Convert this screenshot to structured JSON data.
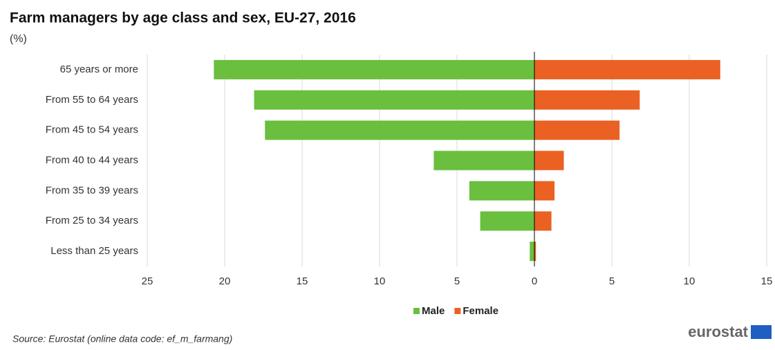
{
  "chart_data": {
    "type": "bar",
    "orientation": "horizontal",
    "title": "Farm managers by age class and sex, EU-27, 2016",
    "subtitle": "(%)",
    "categories": [
      "65 years or more",
      "From 55 to 64 years",
      "From 45 to 54 years",
      "From 40 to 44 years",
      "From 35 to 39 years",
      "From 25 to 34 years",
      "Less than 25 years"
    ],
    "series": [
      {
        "name": "Male",
        "color": "#6abf3e",
        "values": [
          -20.7,
          -18.1,
          -17.4,
          -6.5,
          -4.2,
          -3.5,
          -0.3
        ]
      },
      {
        "name": "Female",
        "color": "#eb6123",
        "values": [
          12.0,
          6.8,
          5.5,
          1.9,
          1.3,
          1.1,
          0.1
        ]
      }
    ],
    "xlim": [
      -25,
      15
    ],
    "xticks": [
      {
        "value": -25,
        "label": "25"
      },
      {
        "value": -20,
        "label": "20"
      },
      {
        "value": -15,
        "label": "15"
      },
      {
        "value": -10,
        "label": "10"
      },
      {
        "value": -5,
        "label": "5"
      },
      0,
      5,
      10,
      15
    ],
    "grid": true,
    "legend": "bottom",
    "source": "Source: Eurostat (online data code: ef_m_farmang)",
    "logo": "eurostat"
  }
}
